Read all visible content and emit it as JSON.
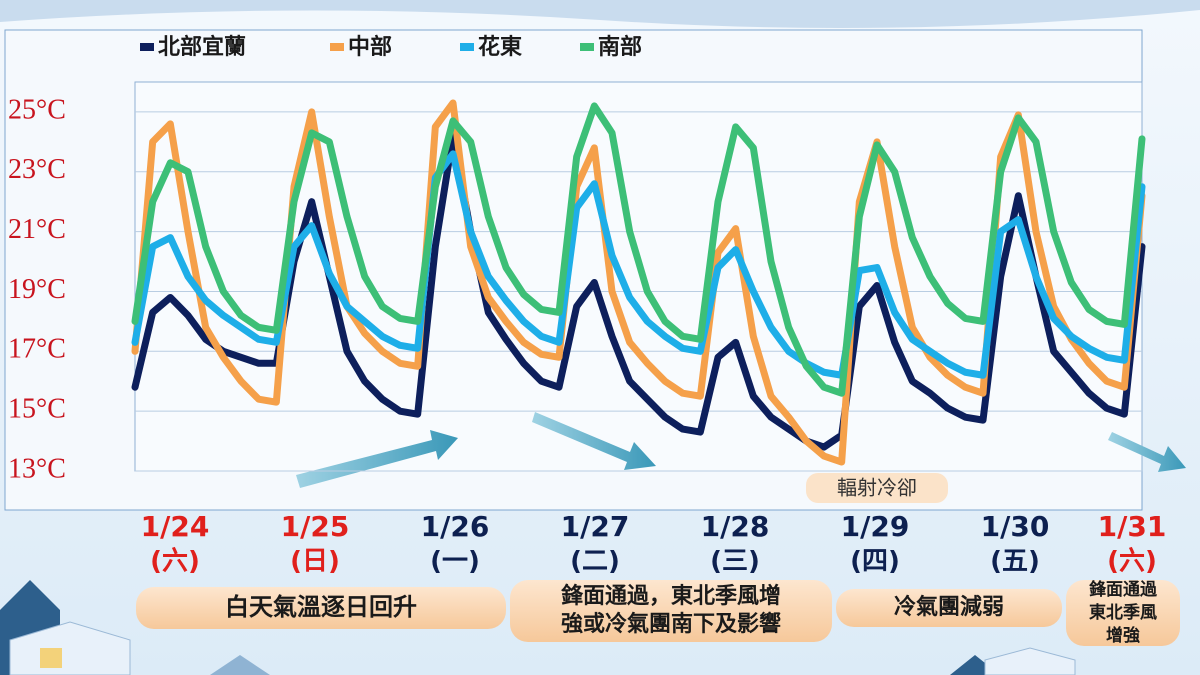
{
  "chart_data": {
    "type": "line",
    "legend": "top",
    "grid": true,
    "ylim": [
      13,
      26
    ],
    "yticks": [
      {
        "value": 13,
        "label": "13°C"
      },
      {
        "value": 15,
        "label": "15°C"
      },
      {
        "value": 17,
        "label": "17°C"
      },
      {
        "value": 19,
        "label": "19°C"
      },
      {
        "value": 21,
        "label": "21°C"
      },
      {
        "value": 23,
        "label": "23°C"
      },
      {
        "value": 25,
        "label": "25°C"
      }
    ],
    "ytick_color": "#c8141e",
    "series": [
      {
        "name": "北部宜蘭",
        "color": "#0d1f5c",
        "values": [
          15.8,
          18.3,
          18.8,
          18.2,
          17.4,
          17.0,
          16.8,
          16.6,
          16.6,
          20.0,
          22.0,
          19.5,
          17.0,
          16.0,
          15.4,
          15.0,
          14.9,
          20.5,
          24.2,
          21.0,
          18.3,
          17.4,
          16.6,
          16.0,
          15.8,
          18.5,
          19.3,
          17.5,
          16.0,
          15.4,
          14.8,
          14.4,
          14.3,
          16.8,
          17.3,
          15.5,
          14.8,
          14.4,
          14.0,
          13.8,
          14.2,
          18.5,
          19.2,
          17.3,
          16.0,
          15.6,
          15.1,
          14.8,
          14.7,
          19.5,
          22.2,
          19.5,
          17.0,
          16.3,
          15.6,
          15.1,
          14.9,
          20.5
        ]
      },
      {
        "name": "中部",
        "color": "#f5a04a",
        "values": [
          17.0,
          24.0,
          24.6,
          21.0,
          17.8,
          16.8,
          16.0,
          15.4,
          15.3,
          22.5,
          25.0,
          21.5,
          18.5,
          17.6,
          17.0,
          16.6,
          16.5,
          24.5,
          25.3,
          20.5,
          18.8,
          18.0,
          17.3,
          16.9,
          16.8,
          22.5,
          23.8,
          19.0,
          17.3,
          16.6,
          16.0,
          15.6,
          15.5,
          20.3,
          21.1,
          17.5,
          15.5,
          14.8,
          14.0,
          13.5,
          13.3,
          22.0,
          24.0,
          20.5,
          17.8,
          16.8,
          16.2,
          15.8,
          15.6,
          23.5,
          24.9,
          21.0,
          18.5,
          17.4,
          16.6,
          16.0,
          15.8,
          22.2
        ]
      },
      {
        "name": "花東",
        "color": "#1eaee8",
        "values": [
          17.3,
          20.5,
          20.8,
          19.5,
          18.7,
          18.2,
          17.8,
          17.4,
          17.3,
          20.5,
          21.2,
          19.6,
          18.5,
          18.0,
          17.5,
          17.2,
          17.1,
          22.8,
          23.6,
          21.0,
          19.5,
          18.7,
          18.0,
          17.5,
          17.3,
          21.8,
          22.6,
          20.2,
          18.8,
          18.0,
          17.5,
          17.1,
          17.0,
          19.8,
          20.4,
          19.0,
          17.8,
          17.0,
          16.6,
          16.3,
          16.2,
          19.7,
          19.8,
          18.3,
          17.4,
          17.0,
          16.6,
          16.3,
          16.2,
          21.0,
          21.4,
          19.5,
          18.1,
          17.5,
          17.1,
          16.8,
          16.7,
          22.5
        ]
      },
      {
        "name": "南部",
        "color": "#3dbf77",
        "values": [
          18.0,
          22.0,
          23.3,
          23.0,
          20.5,
          19.0,
          18.2,
          17.8,
          17.7,
          22.0,
          24.3,
          24.0,
          21.5,
          19.5,
          18.5,
          18.1,
          18.0,
          22.5,
          24.7,
          24.0,
          21.5,
          19.8,
          18.9,
          18.4,
          18.3,
          23.5,
          25.2,
          24.3,
          21.0,
          19.0,
          18.0,
          17.5,
          17.4,
          22.0,
          24.5,
          23.8,
          20.0,
          17.8,
          16.5,
          15.8,
          15.6,
          21.5,
          23.9,
          23.0,
          20.8,
          19.5,
          18.6,
          18.1,
          18.0,
          23.0,
          24.8,
          24.0,
          21.0,
          19.3,
          18.4,
          18.0,
          17.9,
          24.1
        ]
      }
    ],
    "day_labels": [
      {
        "date": "1/24",
        "weekday": "(六)",
        "color": "#e0201c"
      },
      {
        "date": "1/25",
        "weekday": "(日)",
        "color": "#e0201c"
      },
      {
        "date": "1/26",
        "weekday": "(一)",
        "color": "#0d2050"
      },
      {
        "date": "1/27",
        "weekday": "(二)",
        "color": "#0d2050"
      },
      {
        "date": "1/28",
        "weekday": "(三)",
        "color": "#0d2050"
      },
      {
        "date": "1/29",
        "weekday": "(四)",
        "color": "#0d2050"
      },
      {
        "date": "1/30",
        "weekday": "(五)",
        "color": "#0d2050"
      },
      {
        "date": "1/31",
        "weekday": "(六)",
        "color": "#e0201c"
      }
    ],
    "annotation": "輻射冷卻",
    "banners": [
      {
        "lines": [
          "白天氣溫逐日回升"
        ]
      },
      {
        "lines": [
          "鋒面通過，東北季風增",
          "強或冷氣團南下及影響"
        ]
      },
      {
        "lines": [
          "冷氣團減弱"
        ]
      },
      {
        "lines": [
          "鋒面通過",
          "東北季風",
          "增強"
        ]
      }
    ]
  }
}
